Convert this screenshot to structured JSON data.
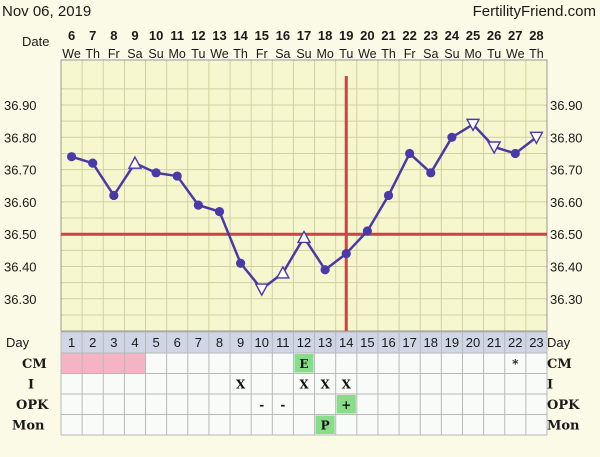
{
  "header": {
    "date": "Nov 06, 2019",
    "site": "FertilityFriend.com"
  },
  "labels": {
    "date": "Date",
    "day": "Day",
    "cm": "CM",
    "i": "I",
    "opk": "OPK",
    "mon": "Mon"
  },
  "colors": {
    "line": "#4a3aa8",
    "coverline": "#cc4444",
    "grid": "#d0d0a0",
    "background": "#fafae6",
    "plotBackground": "#f7f7cf",
    "rowBackground": "#f9fbf9",
    "pink": "#f4b4c4",
    "green": "#88dd88",
    "dayBand": "#cfd6e6"
  },
  "dates": [
    "6",
    "7",
    "8",
    "9",
    "10",
    "11",
    "12",
    "13",
    "14",
    "15",
    "16",
    "17",
    "18",
    "19",
    "20",
    "21",
    "22",
    "23",
    "24",
    "25",
    "26",
    "27",
    "28"
  ],
  "weekdays": [
    "We",
    "Th",
    "Fr",
    "Sa",
    "Su",
    "Mo",
    "Tu",
    "We",
    "Th",
    "Fr",
    "Sa",
    "Su",
    "Mo",
    "Tu",
    "We",
    "Th",
    "Fr",
    "Sa",
    "Su",
    "Mo",
    "Tu",
    "We",
    "Th"
  ],
  "chart_data": {
    "type": "line",
    "xlabel": "Day",
    "days": [
      1,
      2,
      3,
      4,
      5,
      6,
      7,
      8,
      9,
      10,
      11,
      12,
      13,
      14,
      15,
      16,
      17,
      18,
      19,
      20,
      21,
      22,
      23
    ],
    "temperatures": [
      36.74,
      36.72,
      36.62,
      36.72,
      36.69,
      36.68,
      36.59,
      36.57,
      36.41,
      36.33,
      36.38,
      36.49,
      36.39,
      36.44,
      36.51,
      36.62,
      36.75,
      36.69,
      36.8,
      36.84,
      36.77,
      36.75,
      36.8
    ],
    "markers": [
      "circle",
      "circle",
      "circle",
      "open-up",
      "circle",
      "circle",
      "circle",
      "circle",
      "circle",
      "open-down",
      "open-up",
      "open-up",
      "circle",
      "circle",
      "circle",
      "circle",
      "circle",
      "circle",
      "circle",
      "open-down",
      "open-down",
      "circle",
      "open-down"
    ],
    "yticks": [
      "36.90",
      "36.80",
      "36.70",
      "36.60",
      "36.50",
      "36.40",
      "36.30"
    ],
    "ylim": [
      36.24,
      36.95
    ],
    "coverline": 36.5,
    "ovulation_day": 14
  },
  "rows": {
    "cm": {
      "pink": [
        1,
        2,
        3,
        4
      ],
      "marks": [
        {
          "day": 12,
          "text": "E",
          "bg": "green"
        },
        {
          "day": 22,
          "text": "*",
          "bg": ""
        }
      ]
    },
    "i": {
      "marks": [
        {
          "day": 9,
          "text": "X"
        },
        {
          "day": 12,
          "text": "X"
        },
        {
          "day": 13,
          "text": "X"
        },
        {
          "day": 14,
          "text": "X"
        }
      ]
    },
    "opk": {
      "marks": [
        {
          "day": 10,
          "text": "-",
          "bg": ""
        },
        {
          "day": 11,
          "text": "-",
          "bg": ""
        },
        {
          "day": 14,
          "text": "+",
          "bg": "green"
        }
      ]
    },
    "mon": {
      "marks": [
        {
          "day": 13,
          "text": "P",
          "bg": "green"
        }
      ]
    }
  }
}
